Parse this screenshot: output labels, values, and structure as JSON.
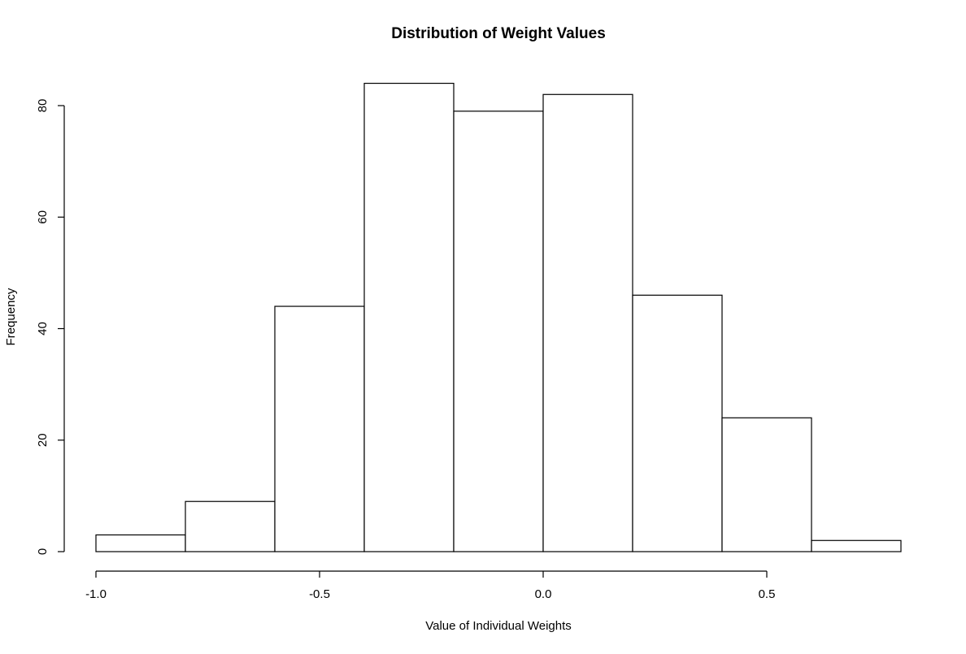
{
  "chart_data": {
    "type": "bar",
    "title": "Distribution of Weight Values",
    "xlabel": "Value of Individual Weights",
    "ylabel": "Frequency",
    "bin_edges": [
      -1.0,
      -0.8,
      -0.6,
      -0.4,
      -0.2,
      0.0,
      0.2,
      0.4,
      0.6,
      0.8
    ],
    "values": [
      3,
      9,
      44,
      84,
      79,
      82,
      46,
      24,
      2
    ],
    "xlim": [
      -1.0,
      0.8
    ],
    "ylim": [
      0,
      80
    ],
    "x_ticks": [
      -1.0,
      -0.5,
      0.0,
      0.5
    ],
    "x_tick_labels": [
      "-1.0",
      "-0.5",
      "0.0",
      "0.5"
    ],
    "y_ticks": [
      0,
      20,
      40,
      60,
      80
    ],
    "y_tick_labels": [
      "0",
      "20",
      "40",
      "60",
      "80"
    ],
    "grid": false,
    "legend": "none",
    "bar_fill": "#ffffff",
    "bar_stroke": "#000000"
  }
}
